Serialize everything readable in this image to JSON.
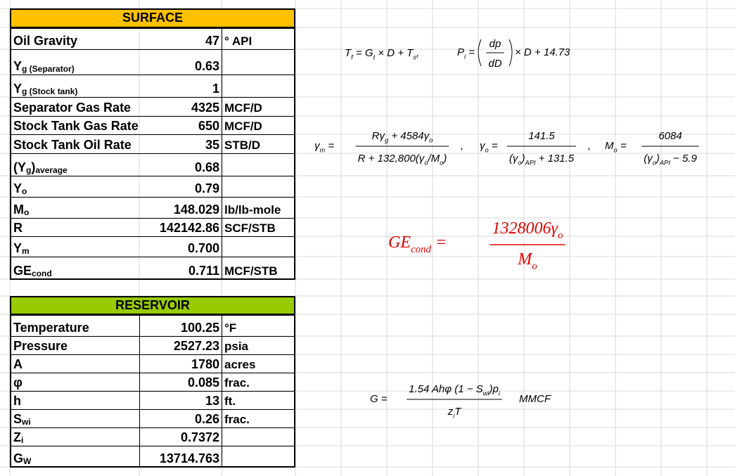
{
  "surface": {
    "title": "SURFACE",
    "rows": [
      {
        "label": [
          "Oil Gravity"
        ],
        "value": "47",
        "unit": "° API"
      },
      {
        "label": [
          "Y",
          {
            "text": "g (Separator)",
            "script": "sub"
          }
        ],
        "value": "0.63"
      },
      {
        "label": [
          "Y",
          {
            "text": "g (Stock tank)",
            "script": "sub"
          }
        ],
        "value": "1"
      },
      {
        "label": [
          "Separator Gas Rate"
        ],
        "value": "4325",
        "unit": "MCF/D"
      },
      {
        "label": [
          "Stock Tank Gas Rate"
        ],
        "value": "650",
        "unit": "MCF/D"
      },
      {
        "label": [
          "Stock Tank Oil Rate"
        ],
        "value": "35",
        "unit": "STB/D"
      },
      {
        "label": [
          "(Y",
          {
            "text": "g",
            "script": "sub"
          },
          ")",
          {
            "text": "average",
            "script": "sub"
          }
        ],
        "value": "0.68"
      },
      {
        "label": [
          "Y",
          {
            "text": "o",
            "script": "sub"
          }
        ],
        "value": "0.79"
      },
      {
        "label": [
          "M",
          {
            "text": "o",
            "script": "sub"
          }
        ],
        "value": "148.029",
        "unit": "lb/lb-mole"
      },
      {
        "label": [
          "R"
        ],
        "value": "142142.86",
        "unit": "SCF/STB"
      },
      {
        "label": [
          "Y",
          {
            "text": "m",
            "script": "sub"
          }
        ],
        "value": "0.700"
      },
      {
        "label": [
          "GE",
          {
            "text": "cond",
            "script": "sub"
          }
        ],
        "value": "0.711",
        "unit": "MCF/STB"
      }
    ]
  },
  "reservoir": {
    "title": "RESERVOIR",
    "rows": [
      {
        "label": [
          "Temperature"
        ],
        "value": "100.25",
        "unit": "°F"
      },
      {
        "label": [
          "Pressure"
        ],
        "value": "2527.23",
        "unit": "psia"
      },
      {
        "label": [
          "A"
        ],
        "value": "1780",
        "unit": "acres"
      },
      {
        "label": [
          "φ"
        ],
        "value": "0.085",
        "unit": "frac."
      },
      {
        "label": [
          "h"
        ],
        "value": "13",
        "unit": "ft."
      },
      {
        "label": [
          "S",
          {
            "text": "wi",
            "script": "sub"
          }
        ],
        "value": "0.26",
        "unit": "frac."
      },
      {
        "label": [
          "Z",
          {
            "text": "i",
            "script": "sub"
          }
        ],
        "value": "0.7372"
      },
      {
        "label": [
          "G",
          {
            "text": "W",
            "script": "sub"
          }
        ],
        "value": "13714.763"
      }
    ]
  },
  "formulas": {
    "tf": {
      "lhs": [
        "T",
        {
          "text": "f",
          "script": "sub"
        },
        " = G",
        {
          "text": "t",
          "script": "sub"
        },
        " × D + T",
        {
          "text": "s",
          "script": "sub"
        },
        ","
      ]
    },
    "pi": {
      "lhs": [
        "P",
        {
          "text": "i",
          "script": "sub"
        },
        " ="
      ],
      "num": [
        "dp"
      ],
      "den": [
        "dD"
      ],
      "rhs": [
        "× D + 14.73"
      ]
    },
    "gm": {
      "lhs": [
        "γ",
        {
          "text": "m",
          "script": "sub"
        },
        " ="
      ],
      "num": [
        "Rγ",
        {
          "text": "g",
          "script": "sub"
        },
        " + 4584γ",
        {
          "text": "o",
          "script": "sub"
        }
      ],
      "den": [
        "R + 132,800(γ",
        {
          "text": "o",
          "script": "sub"
        },
        "/M",
        {
          "text": "o",
          "script": "sub"
        },
        ")"
      ],
      "rhs": [
        ","
      ]
    },
    "go": {
      "lhs": [
        "γ",
        {
          "text": "o",
          "script": "sub"
        },
        " ="
      ],
      "num": [
        "141.5"
      ],
      "den": [
        "(γ",
        {
          "text": "o",
          "script": "sub"
        },
        ")",
        {
          "text": "API",
          "script": "sub"
        },
        " + 131.5"
      ],
      "rhs": [
        ","
      ]
    },
    "mo": {
      "lhs": [
        "M",
        {
          "text": "o",
          "script": "sub"
        },
        " ="
      ],
      "num": [
        "6084"
      ],
      "den": [
        "(γ",
        {
          "text": "o",
          "script": "sub"
        },
        ")",
        {
          "text": "API",
          "script": "sub"
        },
        " − 5.9"
      ]
    },
    "ge": {
      "lhs": [
        "GE",
        {
          "text": "cond",
          "script": "sub"
        },
        " ="
      ],
      "num": [
        "1328006γ",
        {
          "text": "o",
          "script": "sub"
        }
      ],
      "den": [
        "M",
        {
          "text": "o",
          "script": "sub"
        }
      ]
    },
    "g": {
      "lhs": [
        "G ="
      ],
      "num": [
        "1.54 Ahφ (1 − S",
        {
          "text": "wi",
          "script": "sub"
        },
        ")p",
        {
          "text": "i",
          "script": "sub"
        }
      ],
      "den": [
        "z",
        {
          "text": "i",
          "script": "sub"
        },
        "T"
      ],
      "rhs": [
        "MMCF"
      ]
    }
  }
}
